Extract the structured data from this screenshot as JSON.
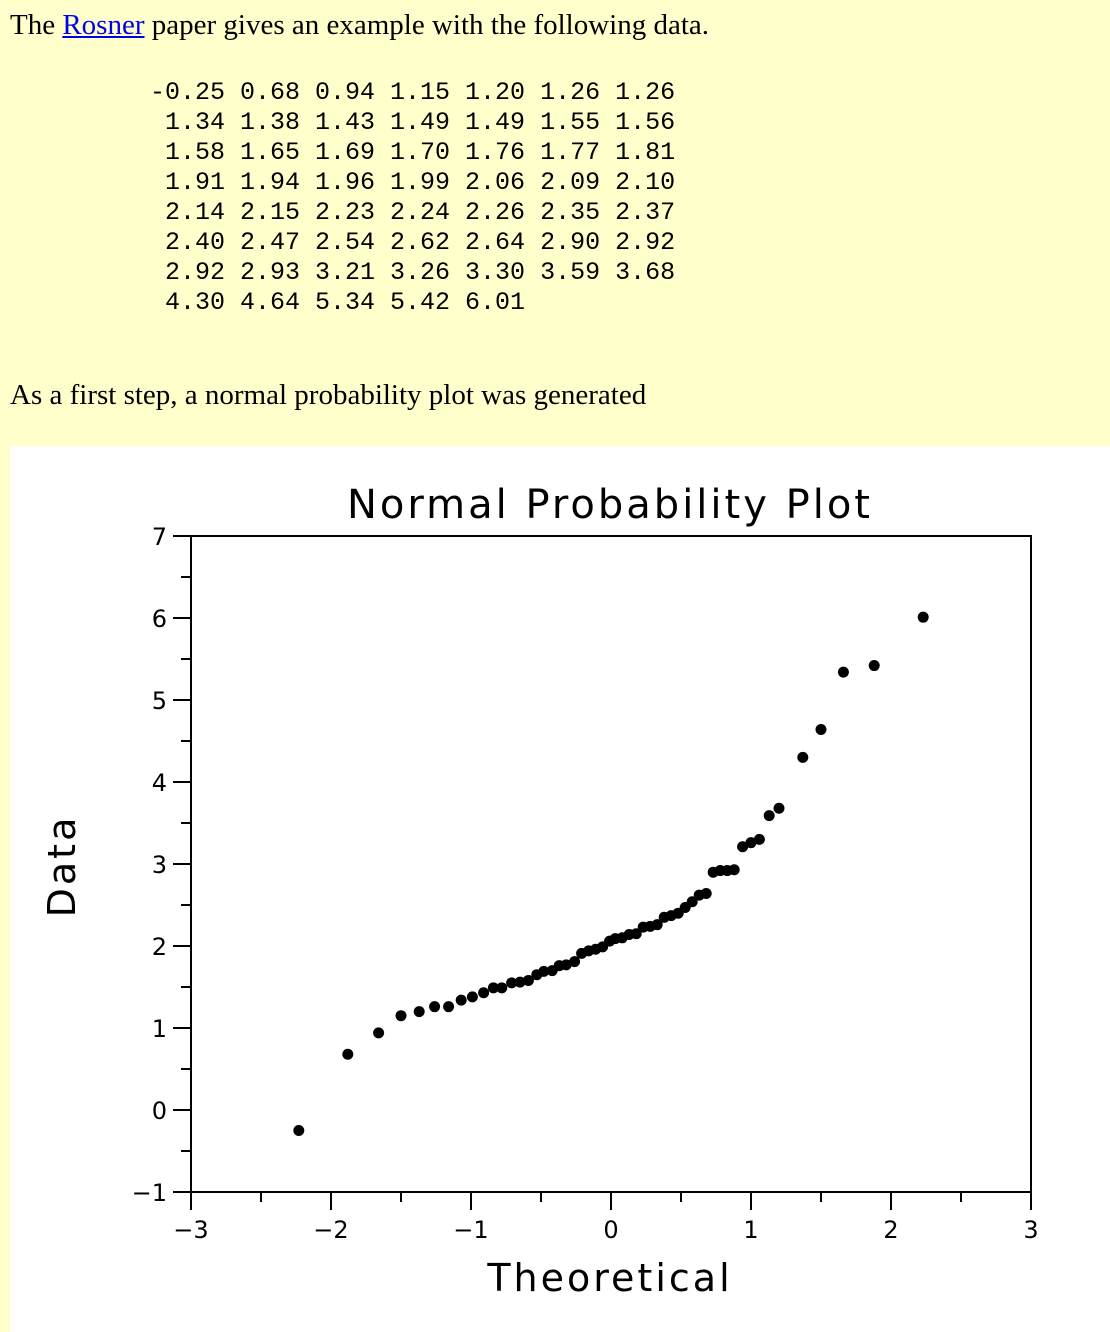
{
  "intro": {
    "before": "The ",
    "link_text": "Rosner",
    "after": " paper gives an example with the following data."
  },
  "data_rows": [
    "-0.25 0.68 0.94 1.15 1.20 1.26 1.26",
    " 1.34 1.38 1.43 1.49 1.49 1.55 1.56",
    " 1.58 1.65 1.69 1.70 1.76 1.77 1.81",
    " 1.91 1.94 1.96 1.99 2.06 2.09 2.10",
    " 2.14 2.15 2.23 2.24 2.26 2.35 2.37",
    " 2.40 2.47 2.54 2.62 2.64 2.90 2.92",
    " 2.92 2.93 3.21 3.26 3.30 3.59 3.68",
    " 4.30 4.64 5.34 5.42 6.01"
  ],
  "step_text": "As a first step, a normal probability plot was generated",
  "chart_data": {
    "type": "scatter",
    "title": "Normal Probability Plot",
    "xlabel": "Theoretical",
    "ylabel": "Data",
    "xlim": [
      -3,
      3
    ],
    "ylim": [
      -1,
      7
    ],
    "xticks": [
      -3,
      -2,
      -1,
      0,
      1,
      2,
      3
    ],
    "yticks": [
      -1,
      0,
      1,
      2,
      3,
      4,
      5,
      6,
      7
    ],
    "grid": false,
    "marker_color": "#000000",
    "points": [
      {
        "x": -2.23,
        "y": -0.25
      },
      {
        "x": -1.88,
        "y": 0.68
      },
      {
        "x": -1.66,
        "y": 0.94
      },
      {
        "x": -1.5,
        "y": 1.15
      },
      {
        "x": -1.37,
        "y": 1.2
      },
      {
        "x": -1.26,
        "y": 1.26
      },
      {
        "x": -1.16,
        "y": 1.26
      },
      {
        "x": -1.07,
        "y": 1.34
      },
      {
        "x": -0.99,
        "y": 1.38
      },
      {
        "x": -0.91,
        "y": 1.43
      },
      {
        "x": -0.84,
        "y": 1.49
      },
      {
        "x": -0.78,
        "y": 1.49
      },
      {
        "x": -0.71,
        "y": 1.55
      },
      {
        "x": -0.65,
        "y": 1.56
      },
      {
        "x": -0.59,
        "y": 1.58
      },
      {
        "x": -0.53,
        "y": 1.65
      },
      {
        "x": -0.48,
        "y": 1.69
      },
      {
        "x": -0.42,
        "y": 1.7
      },
      {
        "x": -0.37,
        "y": 1.76
      },
      {
        "x": -0.32,
        "y": 1.77
      },
      {
        "x": -0.26,
        "y": 1.81
      },
      {
        "x": -0.21,
        "y": 1.91
      },
      {
        "x": -0.16,
        "y": 1.94
      },
      {
        "x": -0.11,
        "y": 1.96
      },
      {
        "x": -0.06,
        "y": 1.99
      },
      {
        "x": -0.01,
        "y": 2.06
      },
      {
        "x": 0.03,
        "y": 2.09
      },
      {
        "x": 0.08,
        "y": 2.1
      },
      {
        "x": 0.13,
        "y": 2.14
      },
      {
        "x": 0.18,
        "y": 2.15
      },
      {
        "x": 0.23,
        "y": 2.23
      },
      {
        "x": 0.28,
        "y": 2.24
      },
      {
        "x": 0.33,
        "y": 2.26
      },
      {
        "x": 0.38,
        "y": 2.35
      },
      {
        "x": 0.43,
        "y": 2.37
      },
      {
        "x": 0.48,
        "y": 2.4
      },
      {
        "x": 0.53,
        "y": 2.47
      },
      {
        "x": 0.58,
        "y": 2.54
      },
      {
        "x": 0.63,
        "y": 2.62
      },
      {
        "x": 0.68,
        "y": 2.64
      },
      {
        "x": 0.73,
        "y": 2.9
      },
      {
        "x": 0.78,
        "y": 2.92
      },
      {
        "x": 0.83,
        "y": 2.92
      },
      {
        "x": 0.88,
        "y": 2.93
      },
      {
        "x": 0.94,
        "y": 3.21
      },
      {
        "x": 1.0,
        "y": 3.26
      },
      {
        "x": 1.06,
        "y": 3.3
      },
      {
        "x": 1.13,
        "y": 3.59
      },
      {
        "x": 1.2,
        "y": 3.68
      },
      {
        "x": 1.37,
        "y": 4.3
      },
      {
        "x": 1.5,
        "y": 4.64
      },
      {
        "x": 1.66,
        "y": 5.34
      },
      {
        "x": 1.88,
        "y": 5.42
      },
      {
        "x": 2.23,
        "y": 6.01
      }
    ]
  }
}
